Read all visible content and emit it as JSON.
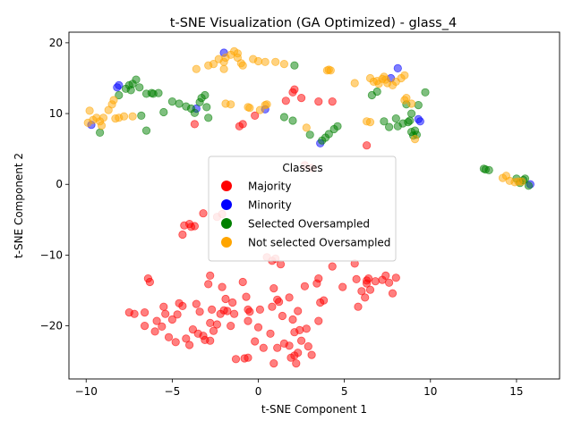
{
  "chart_data": {
    "type": "scatter",
    "title": "t-SNE Visualization (GA Optimized) - glass_4",
    "xlabel": "t-SNE Component 1",
    "ylabel": "t-SNE Component 2",
    "xlim": [
      -11,
      17.5
    ],
    "ylim": [
      -27.5,
      21.5
    ],
    "xticks": [
      -10,
      -5,
      0,
      5,
      10,
      15
    ],
    "yticks": [
      -20,
      -10,
      0,
      10,
      20
    ],
    "grid": false,
    "legend": {
      "title": "Classes",
      "placement": "center"
    },
    "series": [
      {
        "name": "Majority",
        "color": "#ff0000",
        "points": [
          [
            -4.0,
            -5.6
          ],
          [
            -4.3,
            -5.8
          ],
          [
            -3.7,
            -5.9
          ],
          [
            -3.9,
            -6.0
          ],
          [
            -4.4,
            -7.1
          ],
          [
            -3.2,
            -4.1
          ],
          [
            -2.4,
            -4.6
          ],
          [
            -2.1,
            -4.2
          ],
          [
            2.7,
            2.7
          ],
          [
            3.1,
            2.3
          ],
          [
            -1.1,
            8.2
          ],
          [
            -0.9,
            8.5
          ],
          [
            -3.7,
            8.5
          ],
          [
            -0.2,
            9.7
          ],
          [
            1.6,
            11.8
          ],
          [
            2.5,
            12.2
          ],
          [
            2.0,
            13.0
          ],
          [
            2.1,
            13.4
          ],
          [
            3.5,
            11.7
          ],
          [
            4.3,
            11.7
          ],
          [
            6.3,
            5.5
          ],
          [
            -6.4,
            -13.3
          ],
          [
            -6.3,
            -13.8
          ],
          [
            -5.5,
            -17.3
          ],
          [
            -5.9,
            -19.3
          ],
          [
            -5.6,
            -20.1
          ],
          [
            -6.0,
            -20.8
          ],
          [
            -5.2,
            -21.6
          ],
          [
            -4.8,
            -22.3
          ],
          [
            -5.4,
            -18.3
          ],
          [
            -5.0,
            -19.1
          ],
          [
            -4.7,
            -18.4
          ],
          [
            -4.4,
            -17.2
          ],
          [
            -4.6,
            -16.8
          ],
          [
            -4.2,
            -21.8
          ],
          [
            -4.0,
            -22.7
          ],
          [
            -3.8,
            -20.5
          ],
          [
            -3.5,
            -21.1
          ],
          [
            -3.6,
            -16.9
          ],
          [
            -3.4,
            -18.0
          ],
          [
            -3.2,
            -21.4
          ],
          [
            -3.1,
            -22.0
          ],
          [
            -2.8,
            -22.1
          ],
          [
            -2.6,
            -20.7
          ],
          [
            -2.4,
            -19.8
          ],
          [
            -2.8,
            -19.6
          ],
          [
            -2.2,
            -18.3
          ],
          [
            -2.7,
            -17.7
          ],
          [
            -2.0,
            -17.8
          ],
          [
            -1.8,
            -17.9
          ],
          [
            -1.6,
            -20.0
          ],
          [
            -1.5,
            -16.7
          ],
          [
            -1.4,
            -18.3
          ],
          [
            -1.9,
            -16.2
          ],
          [
            -2.1,
            -14.5
          ],
          [
            -2.9,
            -14.1
          ],
          [
            -2.8,
            -12.9
          ],
          [
            -1.3,
            -24.7
          ],
          [
            -0.8,
            -24.6
          ],
          [
            -0.6,
            -24.5
          ],
          [
            -0.6,
            -19.3
          ],
          [
            -0.6,
            -17.7
          ],
          [
            -0.5,
            -18.0
          ],
          [
            -0.7,
            -15.9
          ],
          [
            -0.9,
            -13.8
          ],
          [
            0.0,
            -20.2
          ],
          [
            -0.2,
            -22.2
          ],
          [
            0.3,
            -23.1
          ],
          [
            0.1,
            -17.7
          ],
          [
            0.8,
            -17.3
          ],
          [
            0.7,
            -21.1
          ],
          [
            0.9,
            -14.7
          ],
          [
            0.8,
            -10.8
          ],
          [
            0.5,
            -10.3
          ],
          [
            1.0,
            -10.5
          ],
          [
            1.3,
            -11.3
          ],
          [
            1.1,
            -16.3
          ],
          [
            1.2,
            -16.6
          ],
          [
            1.1,
            -23.1
          ],
          [
            1.4,
            -18.6
          ],
          [
            1.5,
            -22.5
          ],
          [
            1.8,
            -22.8
          ],
          [
            1.9,
            -24.5
          ],
          [
            2.1,
            -24.2
          ],
          [
            2.3,
            -23.8
          ],
          [
            2.0,
            -19.1
          ],
          [
            1.8,
            -16.0
          ],
          [
            2.1,
            -20.9
          ],
          [
            2.4,
            -20.6
          ],
          [
            2.5,
            -22.1
          ],
          [
            2.8,
            -20.4
          ],
          [
            2.9,
            -22.9
          ],
          [
            3.1,
            -24.1
          ],
          [
            2.2,
            -25.3
          ],
          [
            0.9,
            -25.3
          ],
          [
            2.7,
            -14.4
          ],
          [
            2.3,
            -17.9
          ],
          [
            3.5,
            -13.3
          ],
          [
            3.4,
            -14.0
          ],
          [
            3.6,
            -16.7
          ],
          [
            3.8,
            -16.4
          ],
          [
            3.5,
            -19.3
          ],
          [
            4.3,
            -11.6
          ],
          [
            4.9,
            -14.5
          ],
          [
            5.6,
            -11.2
          ],
          [
            5.7,
            -13.4
          ],
          [
            5.8,
            -17.3
          ],
          [
            6.0,
            -15.1
          ],
          [
            6.2,
            -16.0
          ],
          [
            6.3,
            -13.6
          ],
          [
            6.3,
            -14.0
          ],
          [
            6.4,
            -13.3
          ],
          [
            6.5,
            -14.9
          ],
          [
            6.8,
            -13.7
          ],
          [
            7.2,
            -13.5
          ],
          [
            7.4,
            -12.9
          ],
          [
            7.6,
            -13.9
          ],
          [
            7.8,
            -15.4
          ],
          [
            8.0,
            -13.2
          ],
          [
            -7.5,
            -18.1
          ],
          [
            -7.2,
            -18.3
          ],
          [
            -6.6,
            -18.1
          ],
          [
            -6.6,
            -20.0
          ]
        ]
      },
      {
        "name": "Minority",
        "color": "#0000ff",
        "points": [
          [
            -9.7,
            8.4
          ],
          [
            -8.2,
            13.7
          ],
          [
            -8.1,
            14.0
          ],
          [
            -3.6,
            10.7
          ],
          [
            -2.0,
            18.6
          ],
          [
            0.4,
            10.6
          ],
          [
            3.6,
            5.8
          ],
          [
            7.7,
            15.0
          ],
          [
            8.1,
            16.4
          ],
          [
            9.3,
            9.2
          ],
          [
            9.4,
            8.9
          ],
          [
            15.8,
            0.0
          ]
        ]
      },
      {
        "name": "Selected Oversampled",
        "color": "#008000",
        "points": [
          [
            -9.2,
            7.3
          ],
          [
            -8.1,
            12.6
          ],
          [
            -7.7,
            13.5
          ],
          [
            -7.5,
            14.0
          ],
          [
            -7.3,
            14.2
          ],
          [
            -7.1,
            14.8
          ],
          [
            -7.4,
            13.3
          ],
          [
            -6.9,
            13.7
          ],
          [
            -6.8,
            9.7
          ],
          [
            -6.5,
            12.8
          ],
          [
            -6.5,
            7.6
          ],
          [
            -6.2,
            12.9
          ],
          [
            -6.1,
            12.8
          ],
          [
            -5.8,
            12.9
          ],
          [
            -5.5,
            10.2
          ],
          [
            -5.0,
            11.7
          ],
          [
            -4.6,
            11.4
          ],
          [
            -4.2,
            11.0
          ],
          [
            -3.9,
            10.7
          ],
          [
            -3.7,
            10.1
          ],
          [
            -3.4,
            11.6
          ],
          [
            -3.3,
            12.2
          ],
          [
            -3.1,
            12.6
          ],
          [
            -3.0,
            10.9
          ],
          [
            -2.9,
            9.4
          ],
          [
            1.5,
            9.5
          ],
          [
            2.0,
            9.0
          ],
          [
            2.1,
            16.8
          ],
          [
            3.0,
            7.0
          ],
          [
            3.7,
            6.2
          ],
          [
            3.9,
            6.6
          ],
          [
            4.1,
            7.1
          ],
          [
            4.4,
            7.8
          ],
          [
            4.6,
            8.2
          ],
          [
            6.6,
            12.6
          ],
          [
            6.9,
            13.1
          ],
          [
            7.3,
            8.9
          ],
          [
            7.6,
            8.1
          ],
          [
            8.0,
            9.3
          ],
          [
            8.1,
            8.2
          ],
          [
            8.4,
            8.6
          ],
          [
            8.6,
            11.3
          ],
          [
            8.7,
            8.8
          ],
          [
            8.8,
            9.0
          ],
          [
            8.9,
            10.0
          ],
          [
            8.9,
            7.4
          ],
          [
            9.0,
            6.9
          ],
          [
            9.1,
            7.6
          ],
          [
            9.2,
            7.0
          ],
          [
            9.3,
            11.2
          ],
          [
            9.7,
            13.0
          ],
          [
            13.1,
            2.2
          ],
          [
            13.2,
            2.1
          ],
          [
            13.4,
            2.0
          ],
          [
            15.0,
            0.8
          ],
          [
            15.2,
            0.2
          ],
          [
            15.4,
            0.6
          ],
          [
            15.5,
            0.8
          ],
          [
            15.7,
            -0.2
          ]
        ]
      },
      {
        "name": "Not selected Oversampled",
        "color": "#ffa500",
        "points": [
          [
            -9.9,
            8.7
          ],
          [
            -9.8,
            10.4
          ],
          [
            -9.6,
            9.1
          ],
          [
            -9.4,
            9.4
          ],
          [
            -9.2,
            8.9
          ],
          [
            -9.1,
            8.3
          ],
          [
            -9.0,
            9.4
          ],
          [
            -8.7,
            10.5
          ],
          [
            -8.5,
            11.3
          ],
          [
            -8.4,
            11.9
          ],
          [
            -8.3,
            9.3
          ],
          [
            -8.1,
            9.4
          ],
          [
            -7.8,
            9.6
          ],
          [
            -7.3,
            9.6
          ],
          [
            -3.6,
            16.3
          ],
          [
            -2.9,
            16.8
          ],
          [
            -2.6,
            17.0
          ],
          [
            -2.3,
            17.7
          ],
          [
            -2.0,
            16.3
          ],
          [
            -2.0,
            17.3
          ],
          [
            -1.9,
            17.9
          ],
          [
            -1.6,
            18.3
          ],
          [
            -1.4,
            18.8
          ],
          [
            -1.2,
            18.5
          ],
          [
            -1.2,
            17.9
          ],
          [
            -1.0,
            17.1
          ],
          [
            -0.9,
            16.8
          ],
          [
            -1.9,
            11.4
          ],
          [
            -1.6,
            11.3
          ],
          [
            -0.5,
            10.8
          ],
          [
            -0.6,
            10.9
          ],
          [
            0.1,
            10.5
          ],
          [
            0.4,
            11.2
          ],
          [
            0.5,
            11.3
          ],
          [
            -0.3,
            17.7
          ],
          [
            0.0,
            17.4
          ],
          [
            0.4,
            17.3
          ],
          [
            1.0,
            17.3
          ],
          [
            1.5,
            17.0
          ],
          [
            2.8,
            8.0
          ],
          [
            4.0,
            16.1
          ],
          [
            4.1,
            16.2
          ],
          [
            4.2,
            16.1
          ],
          [
            5.6,
            14.3
          ],
          [
            6.3,
            8.9
          ],
          [
            6.5,
            8.8
          ],
          [
            6.7,
            14.5
          ],
          [
            6.9,
            14.6
          ],
          [
            7.0,
            14.2
          ],
          [
            6.5,
            15.0
          ],
          [
            7.2,
            14.9
          ],
          [
            7.4,
            14.8
          ],
          [
            7.3,
            15.2
          ],
          [
            7.5,
            14.3
          ],
          [
            7.8,
            14.0
          ],
          [
            8.0,
            14.5
          ],
          [
            8.3,
            15.0
          ],
          [
            8.5,
            11.9
          ],
          [
            8.5,
            15.4
          ],
          [
            8.6,
            12.2
          ],
          [
            8.9,
            11.4
          ],
          [
            9.1,
            6.4
          ],
          [
            14.2,
            0.9
          ],
          [
            14.4,
            1.2
          ],
          [
            14.6,
            0.5
          ],
          [
            14.9,
            0.3
          ],
          [
            15.1,
            0.4
          ],
          [
            15.3,
            0.4
          ]
        ]
      }
    ]
  }
}
